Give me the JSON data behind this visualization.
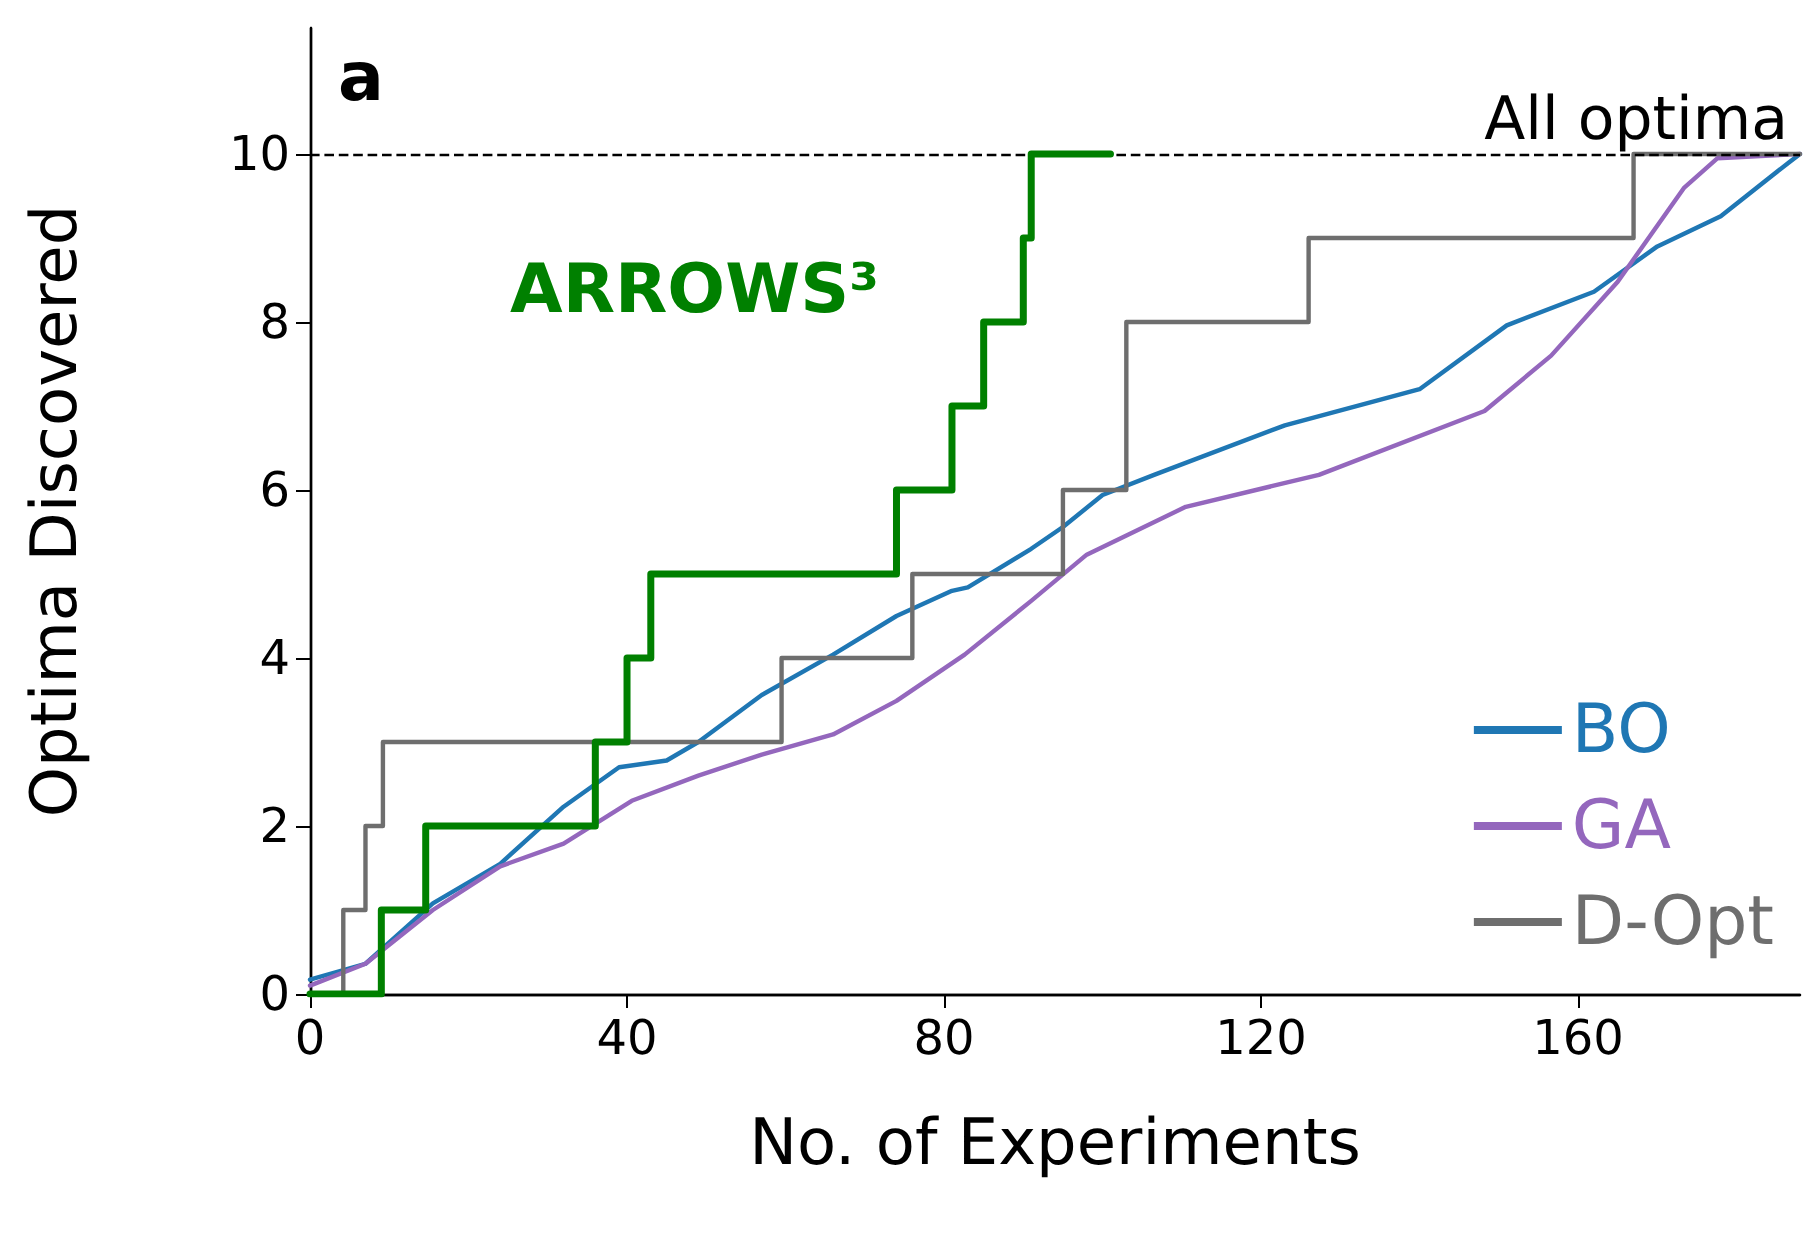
{
  "chart_data": {
    "type": "line",
    "xlabel": "No. of Experiments",
    "ylabel": "Optima Discovered",
    "xlim": [
      0,
      188
    ],
    "xticks": [
      0,
      40,
      80,
      120,
      160
    ],
    "ylim": [
      0,
      11.5
    ],
    "yticks": [
      0,
      2,
      4,
      6,
      8,
      10
    ],
    "grid": false,
    "legend": "bottom right",
    "marker": "none",
    "annotations": [
      "a"
    ],
    "ref_lines": [
      {
        "axis": "y",
        "value": 10,
        "label": "All optima",
        "color": "#000000",
        "line_style": "dashed"
      }
    ],
    "series": [
      {
        "name": "ARROWS³",
        "type": "step",
        "color": "#008000",
        "x": [
          0,
          9,
          14.6,
          36,
          40,
          43,
          74,
          81,
          85,
          90,
          91,
          101
        ],
        "values": [
          0,
          1,
          2,
          3,
          4,
          5,
          6,
          7,
          8,
          9,
          10,
          10
        ]
      },
      {
        "name": "BO",
        "color": "#1f77b4",
        "x": [
          0,
          7,
          15.5,
          24,
          32,
          39,
          45,
          49,
          57,
          66,
          74,
          81,
          83,
          91,
          95,
          100,
          106.5,
          123,
          140,
          151,
          162,
          170,
          178,
          186.6,
          188
        ],
        "values": [
          0.17,
          0.36,
          1.08,
          1.55,
          2.23,
          2.7,
          2.78,
          3.0,
          3.56,
          4.04,
          4.5,
          4.8,
          4.84,
          5.3,
          5.56,
          5.94,
          6.18,
          6.77,
          7.2,
          7.96,
          8.36,
          8.9,
          9.26,
          9.9,
          10
        ]
      },
      {
        "name": "GA",
        "color": "#9467bd",
        "x": [
          0,
          7,
          15.5,
          24,
          32,
          40.6,
          49,
          57,
          66,
          74,
          82.6,
          91,
          98,
          110.5,
          127.3,
          148.2,
          156.6,
          165,
          173.4,
          177.6,
          188
        ],
        "values": [
          0.1,
          0.36,
          1.0,
          1.52,
          1.79,
          2.3,
          2.6,
          2.85,
          3.09,
          3.49,
          4.04,
          4.68,
          5.23,
          5.8,
          6.18,
          6.94,
          7.6,
          8.48,
          9.6,
          9.95,
          10
        ]
      },
      {
        "name": "D-Opt",
        "type": "step",
        "color": "#6e6e6e",
        "x": [
          0,
          4.2,
          7,
          9.2,
          59.5,
          76,
          95,
          103,
          126,
          167,
          188
        ],
        "values": [
          0,
          1,
          2,
          3,
          4,
          5,
          6,
          8,
          9,
          10,
          10
        ]
      }
    ]
  }
}
